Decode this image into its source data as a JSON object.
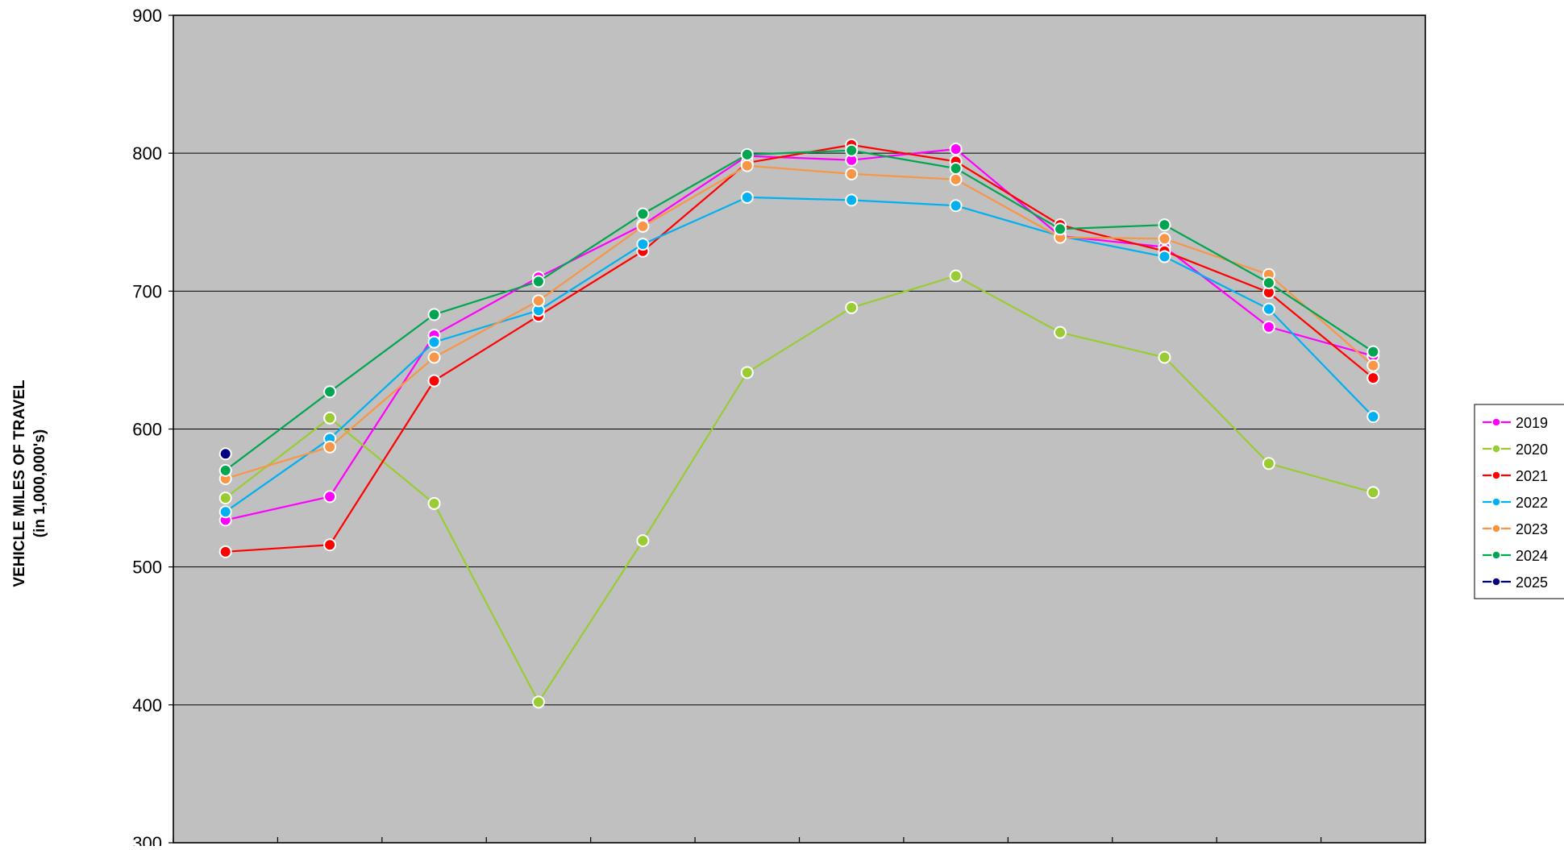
{
  "chart_data": {
    "type": "line",
    "title": "",
    "xlabel": "",
    "ylabel": "VEHICLE MILES OF TRAVEL",
    "ylabel_sub": "(in 1,000,000's)",
    "ylim": [
      300,
      900
    ],
    "yticks": [
      "300",
      "400",
      "500",
      "600",
      "700",
      "800",
      "900"
    ],
    "x": [
      1,
      2,
      3,
      4,
      5,
      6,
      7,
      8,
      9,
      10,
      11,
      12
    ],
    "grid": true,
    "legend_position": "right",
    "plot_background": "#c0c0c0",
    "series": [
      {
        "name": "2019",
        "color": "#ff00ff",
        "values": [
          534,
          551,
          668,
          710,
          748,
          798,
          795,
          803,
          740,
          732,
          674,
          653
        ]
      },
      {
        "name": "2020",
        "color": "#99cc33",
        "values": [
          550,
          608,
          546,
          402,
          519,
          641,
          688,
          711,
          670,
          652,
          575,
          554
        ]
      },
      {
        "name": "2021",
        "color": "#ff0000",
        "values": [
          511,
          516,
          635,
          682,
          729,
          793,
          806,
          794,
          748,
          729,
          699,
          637
        ]
      },
      {
        "name": "2022",
        "color": "#00b0f0",
        "values": [
          540,
          593,
          663,
          686,
          734,
          768,
          766,
          762,
          740,
          725,
          687,
          609
        ]
      },
      {
        "name": "2023",
        "color": "#f79646",
        "values": [
          564,
          587,
          652,
          693,
          747,
          791,
          785,
          781,
          739,
          738,
          712,
          646
        ]
      },
      {
        "name": "2024",
        "color": "#00a550",
        "values": [
          570,
          627,
          683,
          707,
          756,
          799,
          802,
          789,
          745,
          748,
          706,
          656
        ]
      },
      {
        "name": "2025",
        "color": "#000080",
        "values": [
          582,
          null,
          null,
          null,
          null,
          null,
          null,
          null,
          null,
          null,
          null,
          null
        ]
      }
    ]
  }
}
